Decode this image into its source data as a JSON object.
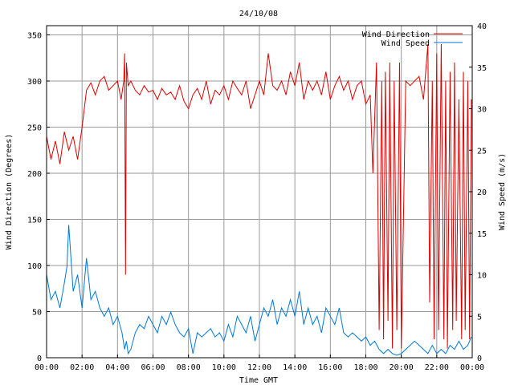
{
  "chart_data": {
    "type": "line",
    "title": "24/10/08",
    "xlabel": "Time GMT",
    "ylabel_left": "Wind Direction (Degrees)",
    "ylabel_right": "Wind Speed (m/s)",
    "xlim": [
      0,
      24
    ],
    "ylim_left": [
      0,
      360
    ],
    "ylim_right": [
      0,
      40
    ],
    "x_ticks": [
      "00:00",
      "02:00",
      "04:00",
      "06:00",
      "08:00",
      "10:00",
      "12:00",
      "14:00",
      "16:00",
      "18:00",
      "20:00",
      "22:00",
      "00:00"
    ],
    "y_left_ticks": [
      0,
      50,
      100,
      150,
      200,
      250,
      300,
      350
    ],
    "y_right_ticks": [
      0,
      5,
      10,
      15,
      20,
      25,
      30,
      35,
      40
    ],
    "grid": true,
    "legend_position": "top-right",
    "series": [
      {
        "name": "Wind Direction",
        "axis": "left",
        "color": "#dd0000",
        "x": [
          0,
          0.25,
          0.5,
          0.75,
          1.0,
          1.25,
          1.5,
          1.75,
          2.0,
          2.25,
          2.5,
          2.75,
          3.0,
          3.25,
          3.5,
          3.75,
          4.0,
          4.2,
          4.35,
          4.4,
          4.45,
          4.5,
          4.6,
          4.75,
          5.0,
          5.25,
          5.5,
          5.75,
          6.0,
          6.25,
          6.5,
          6.75,
          7.0,
          7.25,
          7.5,
          7.75,
          8.0,
          8.25,
          8.5,
          8.75,
          9.0,
          9.25,
          9.5,
          9.75,
          10.0,
          10.25,
          10.5,
          10.75,
          11.0,
          11.25,
          11.5,
          11.75,
          12.0,
          12.25,
          12.5,
          12.75,
          13.0,
          13.25,
          13.5,
          13.75,
          14.0,
          14.25,
          14.5,
          14.75,
          15.0,
          15.25,
          15.5,
          15.75,
          16.0,
          16.25,
          16.5,
          16.75,
          17.0,
          17.25,
          17.5,
          17.75,
          18.0,
          18.25,
          18.4,
          18.6,
          18.75,
          18.9,
          19.0,
          19.1,
          19.25,
          19.35,
          19.5,
          19.6,
          19.75,
          19.9,
          20.0,
          20.25,
          20.5,
          20.75,
          21.0,
          21.25,
          21.5,
          21.6,
          21.75,
          21.85,
          22.0,
          22.1,
          22.25,
          22.4,
          22.5,
          22.6,
          22.75,
          22.9,
          23.0,
          23.1,
          23.25,
          23.4,
          23.5,
          23.6,
          23.75,
          23.85,
          23.95
        ],
        "y": [
          240,
          215,
          235,
          210,
          245,
          225,
          240,
          215,
          250,
          290,
          298,
          285,
          300,
          305,
          290,
          295,
          300,
          280,
          300,
          330,
          90,
          320,
          295,
          300,
          290,
          285,
          295,
          288,
          290,
          280,
          292,
          285,
          288,
          280,
          295,
          278,
          270,
          285,
          292,
          280,
          300,
          275,
          290,
          285,
          295,
          280,
          300,
          292,
          285,
          300,
          270,
          285,
          300,
          285,
          330,
          295,
          290,
          300,
          285,
          310,
          295,
          320,
          280,
          300,
          290,
          300,
          285,
          310,
          280,
          295,
          305,
          290,
          300,
          280,
          295,
          300,
          275,
          285,
          200,
          320,
          30,
          300,
          20,
          310,
          40,
          320,
          10,
          300,
          30,
          320,
          10,
          300,
          295,
          300,
          305,
          280,
          340,
          60,
          300,
          20,
          330,
          30,
          340,
          20,
          300,
          10,
          310,
          30,
          320,
          40,
          280,
          20,
          310,
          30,
          300,
          20,
          280
        ]
      },
      {
        "name": "Wind Speed",
        "axis": "right",
        "color": "#0077dd",
        "x": [
          0,
          0.25,
          0.5,
          0.75,
          1.0,
          1.15,
          1.25,
          1.5,
          1.75,
          2.0,
          2.25,
          2.5,
          2.75,
          3.0,
          3.25,
          3.5,
          3.75,
          4.0,
          4.25,
          4.4,
          4.5,
          4.6,
          4.75,
          5.0,
          5.25,
          5.5,
          5.75,
          6.0,
          6.25,
          6.5,
          6.75,
          7.0,
          7.25,
          7.5,
          7.75,
          8.0,
          8.25,
          8.5,
          8.75,
          9.0,
          9.25,
          9.5,
          9.75,
          10.0,
          10.25,
          10.5,
          10.75,
          11.0,
          11.25,
          11.5,
          11.75,
          12.0,
          12.25,
          12.5,
          12.75,
          13.0,
          13.25,
          13.5,
          13.75,
          14.0,
          14.25,
          14.5,
          14.75,
          15.0,
          15.25,
          15.5,
          15.75,
          16.0,
          16.25,
          16.5,
          16.75,
          17.0,
          17.25,
          17.5,
          17.75,
          18.0,
          18.25,
          18.5,
          18.75,
          19.0,
          19.25,
          19.5,
          19.75,
          20.0,
          20.25,
          20.5,
          20.75,
          21.0,
          21.25,
          21.5,
          21.75,
          22.0,
          22.25,
          22.5,
          22.75,
          23.0,
          23.25,
          23.5,
          23.75,
          23.95
        ],
        "y": [
          10,
          7,
          8,
          6,
          9,
          11,
          16,
          8,
          10,
          6,
          12,
          7,
          8,
          6,
          5,
          6,
          4,
          5,
          3,
          1,
          2,
          0.5,
          1,
          3,
          4,
          3.5,
          5,
          4,
          3,
          5,
          4,
          5.5,
          4,
          3,
          2.5,
          3.5,
          0.5,
          3,
          2.5,
          3,
          3.5,
          2.5,
          3,
          2,
          4,
          2.5,
          5,
          4,
          3,
          5,
          2,
          4,
          6,
          5,
          7,
          4,
          6,
          5,
          7,
          5,
          8,
          4,
          6,
          4,
          5,
          3,
          6,
          5,
          4,
          6,
          3,
          2.5,
          3,
          2.5,
          2,
          2.5,
          1.5,
          2,
          1,
          0.5,
          1,
          0.5,
          0.3,
          0.5,
          1,
          1.5,
          2,
          1.5,
          1,
          0.5,
          1.5,
          0.5,
          1,
          0.5,
          1.5,
          1,
          2,
          1,
          1.5,
          2.5
        ]
      }
    ]
  }
}
